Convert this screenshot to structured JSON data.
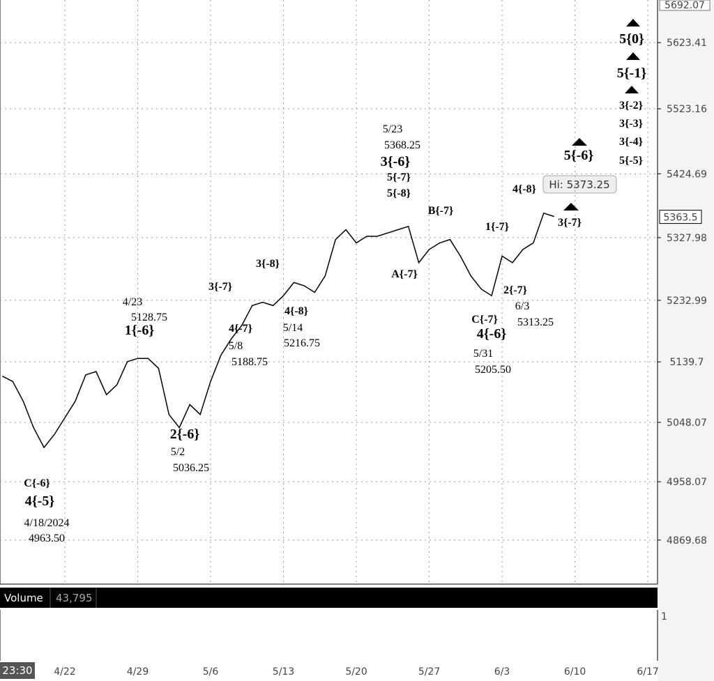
{
  "chart_data": {
    "type": "line",
    "color": "#000000",
    "categories": [
      null,
      null,
      null,
      null,
      null,
      null,
      "4/22",
      null,
      null,
      null,
      null,
      null,
      null,
      "4/29",
      null,
      null,
      null,
      null,
      null,
      null,
      "5/6",
      null,
      null,
      null,
      null,
      null,
      null,
      "5/13",
      null,
      null,
      null,
      null,
      null,
      null,
      "5/20",
      null,
      null,
      null,
      null,
      null,
      null,
      "5/27",
      null,
      null,
      null,
      null,
      null,
      null,
      "6/3",
      null,
      null,
      null,
      null,
      null,
      null,
      "6/10",
      null,
      null,
      null,
      null,
      null,
      null,
      "6/17"
    ],
    "values": [
      5118,
      5110,
      5080,
      5040,
      5010,
      5030,
      5055,
      5080,
      5120,
      5125,
      5090,
      5105,
      5140,
      5145,
      5145,
      5130,
      5060,
      5040,
      5075,
      5060,
      5110,
      5150,
      5175,
      5195,
      5225,
      5230,
      5225,
      5240,
      5260,
      5255,
      5245,
      5270,
      5325,
      5340,
      5320,
      5330,
      5330,
      5335,
      5340,
      5345,
      5290,
      5310,
      5320,
      5325,
      5300,
      5270,
      5250,
      5240,
      5300,
      5290,
      5310,
      5320,
      5365,
      5360,
      null,
      null,
      null,
      null,
      null,
      null,
      null,
      null,
      null
    ],
    "ylim": [
      4803,
      5688
    ],
    "yticks": [
      5623.41,
      5523.16,
      5424.69,
      5327.98,
      5232.99,
      5139.7,
      5048.07,
      4958.07,
      4869.68
    ],
    "grid": true,
    "top_label": "5692.07",
    "last_label": "5363.5",
    "high_label": "Hi: 5373.25",
    "time_label": "23:30",
    "volume_title": "Volume",
    "volume_value": "43,795",
    "volume_axis_label": "1",
    "annotations": [
      "C{-6}",
      "4{-5}",
      "4/18/2024",
      "4963.50",
      "4/23",
      "5128.75",
      "1{-6}",
      "2{-6}",
      "5/2",
      "5036.25",
      "3{-7}",
      "4{-7}",
      "5/8",
      "5188.75",
      "3{-8}",
      "4{-8}",
      "5/14",
      "5216.75",
      "5/23",
      "5368.25",
      "3{-6}",
      "5{-7}",
      "5{-8}",
      "A{-7}",
      "B{-7}",
      "1{-7}",
      "2{-7}",
      "6/3",
      "5313.25",
      "C{-7}",
      "4{-6}",
      "5/31",
      "5205.50",
      "4{-8}",
      "3{-7}",
      "5{-6}",
      "5{0}",
      "5{-1}",
      "3{-2}",
      "3{-3}",
      "3{-4}",
      "5{-5}"
    ]
  }
}
